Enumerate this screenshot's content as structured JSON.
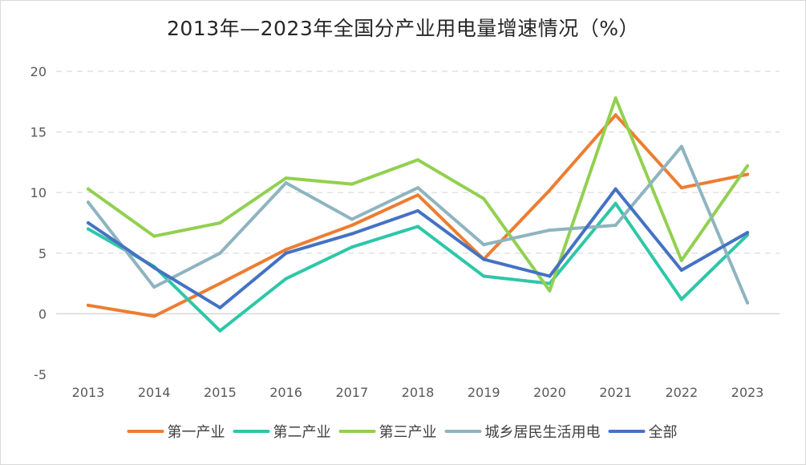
{
  "chart_data": {
    "type": "line",
    "title": "2013年—2023年全国分产业用电量增速情况（%）",
    "xlabel": "",
    "ylabel": "",
    "categories": [
      "2013",
      "2014",
      "2015",
      "2016",
      "2017",
      "2018",
      "2019",
      "2020",
      "2021",
      "2022",
      "2023"
    ],
    "ylim": [
      -5,
      20
    ],
    "yticks": [
      -5,
      0,
      5,
      10,
      15,
      20
    ],
    "grid": true,
    "legend_position": "bottom",
    "series": [
      {
        "name": "第一产业",
        "color": "#ed7d31",
        "values": [
          0.7,
          -0.2,
          2.5,
          5.3,
          7.3,
          9.8,
          4.5,
          10.2,
          16.4,
          10.4,
          11.5
        ]
      },
      {
        "name": "第二产业",
        "color": "#2ec7a8",
        "values": [
          7.0,
          3.9,
          -1.4,
          2.9,
          5.5,
          7.2,
          3.1,
          2.5,
          9.1,
          1.2,
          6.5
        ]
      },
      {
        "name": "第三产业",
        "color": "#92d050",
        "values": [
          10.3,
          6.4,
          7.5,
          11.2,
          10.7,
          12.7,
          9.5,
          1.9,
          17.8,
          4.4,
          12.2
        ]
      },
      {
        "name": "城乡居民生活用电",
        "color": "#8eb4c0",
        "values": [
          9.2,
          2.2,
          5.0,
          10.8,
          7.8,
          10.4,
          5.7,
          6.9,
          7.3,
          13.8,
          0.9
        ]
      },
      {
        "name": "全部",
        "color": "#4472c4",
        "values": [
          7.5,
          3.8,
          0.5,
          5.0,
          6.6,
          8.5,
          4.5,
          3.1,
          10.3,
          3.6,
          6.7
        ]
      }
    ]
  }
}
